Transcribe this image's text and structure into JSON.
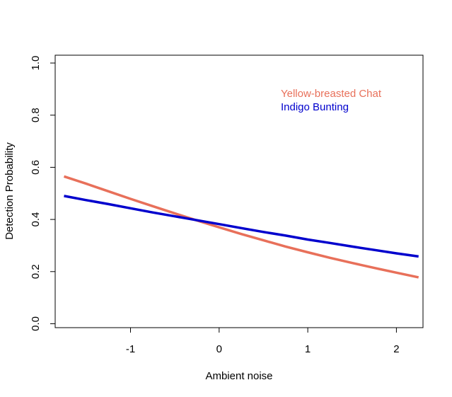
{
  "chart_data": {
    "type": "line",
    "title": "",
    "xlabel": "Ambient noise",
    "ylabel": "Detection Probability",
    "xlim": [
      -1.85,
      2.3
    ],
    "ylim": [
      -0.015,
      1.03
    ],
    "x_ticks": [
      -1,
      0,
      1,
      2
    ],
    "x_tick_labels": [
      "-1",
      "0",
      "1",
      "2"
    ],
    "y_ticks": [
      0.0,
      0.2,
      0.4,
      0.6,
      0.8,
      1.0
    ],
    "y_tick_labels": [
      "0.0",
      "0.2",
      "0.4",
      "0.6",
      "0.8",
      "1.0"
    ],
    "grid": false,
    "legend_position": "top-right",
    "series": [
      {
        "name": "Yellow-breasted Chat",
        "color": "#E8705A",
        "x": [
          -1.75,
          -1.5,
          -1.25,
          -1.0,
          -0.75,
          -0.5,
          -0.25,
          0.0,
          0.25,
          0.5,
          0.75,
          1.0,
          1.25,
          1.5,
          1.75,
          2.0,
          2.25
        ],
        "y": [
          0.565,
          0.537,
          0.508,
          0.479,
          0.451,
          0.423,
          0.396,
          0.37,
          0.344,
          0.32,
          0.296,
          0.274,
          0.253,
          0.233,
          0.214,
          0.196,
          0.178
        ]
      },
      {
        "name": "Indigo Bunting",
        "color": "#0000CD",
        "x": [
          -1.75,
          -1.5,
          -1.25,
          -1.0,
          -0.75,
          -0.5,
          -0.25,
          0.0,
          0.25,
          0.5,
          0.75,
          1.0,
          1.25,
          1.5,
          1.75,
          2.0,
          2.25
        ],
        "y": [
          0.49,
          0.474,
          0.459,
          0.443,
          0.427,
          0.412,
          0.397,
          0.382,
          0.367,
          0.352,
          0.338,
          0.323,
          0.31,
          0.296,
          0.283,
          0.27,
          0.258
        ]
      }
    ]
  }
}
